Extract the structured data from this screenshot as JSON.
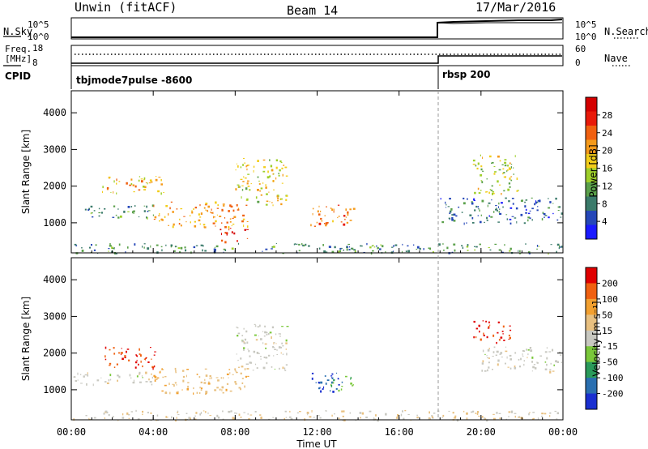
{
  "header": {
    "radar": "Unwin (fitACF)",
    "beam": "Beam 14",
    "date": "17/Mar/2016"
  },
  "top_panels": {
    "nsky_label": "N.Sky",
    "nsky_tick_top": "10^5",
    "nsky_tick_bottom": "10^0",
    "nsearch_label": "N.Search",
    "nsearch_tick_top": "10^5",
    "nsearch_tick_bottom": "10^0",
    "freq_label_1": "Freq.",
    "freq_label_2": "[MHz]",
    "freq_tick_top": "18",
    "freq_tick_bottom": "8",
    "nave_label": "Nave",
    "nave_tick_top": "60",
    "nave_tick_bottom": "0",
    "cpid_label": "CPID",
    "cpid_1": "tbjmode7pulse -8600",
    "cpid_2": "rbsp 200"
  },
  "colorbars": {
    "power": {
      "label": "Power [dB]",
      "ticks": [
        "28",
        "24",
        "20",
        "16",
        "12",
        "8",
        "4"
      ],
      "colors": [
        "#1a1aff",
        "#2547b8",
        "#3a7a6a",
        "#5aa04a",
        "#9ecf2a",
        "#f2cd1a",
        "#f59a1a",
        "#f06010",
        "#e81a0a",
        "#d40000"
      ]
    },
    "velocity": {
      "label": "Velocity [m s⁻¹]",
      "ticks": [
        "200",
        "100",
        "50",
        "15",
        "-15",
        "-50",
        "-100",
        "-200"
      ],
      "colors": [
        "#1a2fd0",
        "#2a6fb0",
        "#2a9a5a",
        "#7ac83a",
        "#c8c8c0",
        "#e8c080",
        "#f2a030",
        "#f06010",
        "#e00000"
      ]
    }
  },
  "chart_data": [
    {
      "type": "heatmap",
      "title": "Power",
      "xlabel": "Time UT",
      "ylabel": "Slant Range [km]",
      "xlim": [
        "00:00",
        "24:00"
      ],
      "ylim": [
        180,
        4600
      ],
      "x_ticks": [
        "00:00",
        "04:00",
        "08:00",
        "12:00",
        "16:00",
        "20:00",
        "00:00"
      ],
      "y_ticks": [
        "1000",
        "2000",
        "3000",
        "4000"
      ],
      "colorbar": "Power [dB]",
      "regions": [
        {
          "name": "dusk-band",
          "t": [
            0.0,
            4.0
          ],
          "r": [
            1150,
            1500
          ],
          "value": 8
        },
        {
          "name": "dusk-upper",
          "t": [
            1.5,
            4.5
          ],
          "r": [
            1800,
            2300
          ],
          "value": 18
        },
        {
          "name": "midday-arc",
          "t": [
            4.0,
            8.6
          ],
          "r": [
            900,
            1600
          ],
          "value": 20
        },
        {
          "name": "strong-blob",
          "t": [
            7.2,
            8.6
          ],
          "r": [
            500,
            900
          ],
          "value": 28
        },
        {
          "name": "mid-arc",
          "t": [
            8.0,
            10.5
          ],
          "r": [
            1500,
            2800
          ],
          "value": 16
        },
        {
          "name": "noon-patch",
          "t": [
            11.6,
            13.8
          ],
          "r": [
            900,
            1500
          ],
          "value": 22
        },
        {
          "name": "ground-near",
          "t": [
            0.0,
            24.0
          ],
          "r": [
            180,
            450
          ],
          "value": 8
        },
        {
          "name": "evening-arcs",
          "t": [
            19.6,
            21.8
          ],
          "r": [
            1800,
            2900
          ],
          "value": 14
        },
        {
          "name": "evening-band",
          "t": [
            18.0,
            24.0
          ],
          "r": [
            1000,
            1700
          ],
          "value": 6
        }
      ]
    },
    {
      "type": "heatmap",
      "title": "Velocity",
      "xlabel": "Time UT",
      "ylabel": "Slant Range [km]",
      "xlim": [
        "00:00",
        "24:00"
      ],
      "ylim": [
        180,
        4600
      ],
      "x_ticks": [
        "00:00",
        "04:00",
        "08:00",
        "12:00",
        "16:00",
        "20:00",
        "00:00"
      ],
      "y_ticks": [
        "1000",
        "2000",
        "3000",
        "4000"
      ],
      "colorbar": "Velocity [m s⁻¹]",
      "regions": [
        {
          "name": "dusk-band",
          "t": [
            0.0,
            4.0
          ],
          "r": [
            1150,
            1500
          ],
          "value": 0
        },
        {
          "name": "dusk-red",
          "t": [
            1.6,
            4.2
          ],
          "r": [
            1600,
            2200
          ],
          "value": -200
        },
        {
          "name": "midday-arc",
          "t": [
            4.0,
            8.6
          ],
          "r": [
            900,
            1600
          ],
          "value": -40
        },
        {
          "name": "mid-arc",
          "t": [
            8.0,
            10.5
          ],
          "r": [
            1500,
            2800
          ],
          "value": 0
        },
        {
          "name": "noon-patch",
          "t": [
            11.6,
            13.2
          ],
          "r": [
            900,
            1500
          ],
          "value": 200
        },
        {
          "name": "noon-green",
          "t": [
            12.6,
            13.8
          ],
          "r": [
            1000,
            1400
          ],
          "value": 50
        },
        {
          "name": "ground-near",
          "t": [
            0.0,
            24.0
          ],
          "r": [
            180,
            450
          ],
          "value": -15
        },
        {
          "name": "evening-red",
          "t": [
            19.6,
            21.4
          ],
          "r": [
            2300,
            2900
          ],
          "value": -200
        },
        {
          "name": "evening-grey",
          "t": [
            20.0,
            24.0
          ],
          "r": [
            1500,
            2200
          ],
          "value": 0
        }
      ]
    }
  ]
}
